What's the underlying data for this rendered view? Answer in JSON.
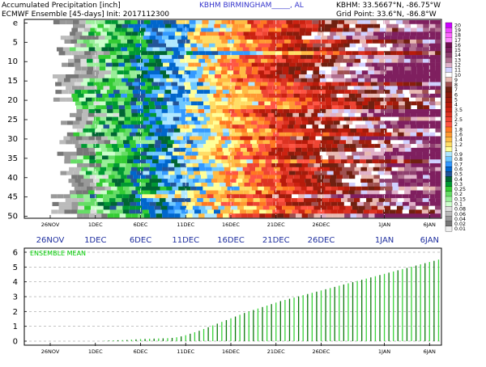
{
  "header": {
    "line1_left": "Accumulated Precipitation [inch]",
    "line1_center": "KBHM  BIRMINGHAM_____, AL",
    "line1_right": "KBHM: 33.5667°N, -86.75°W",
    "line2_left": "ECMWF Ensemble [45-days] Init: 2017112300",
    "line2_right": "Grid Point: 33.6°N, -86.8°W"
  },
  "time_axis": {
    "labels": [
      "26NOV",
      "1DEC",
      "6DEC",
      "11DEC",
      "16DEC",
      "21DEC",
      "26DEC",
      "1JAN",
      "6JAN"
    ]
  },
  "colors": {
    "plume_text": "#ffffff",
    "mean_line": "#00cc00",
    "mean_label": "#00cc00"
  },
  "chart_data": [
    {
      "type": "heatmap",
      "title": "Accumulated Precipitation [inch]",
      "y_ticks": [
        "e",
        "5",
        "10",
        "15",
        "20",
        "25",
        "30",
        "35",
        "40",
        "45",
        "50"
      ],
      "x_ticks": [
        "26NOV",
        "1DEC",
        "6DEC",
        "11DEC",
        "16DEC",
        "21DEC",
        "26DEC",
        "1JAN",
        "6JAN"
      ],
      "members": 51,
      "legend": {
        "thresholds": [
          "20",
          "19",
          "18",
          "17",
          "16",
          "15",
          "14",
          "13",
          "12",
          "11",
          "10",
          "9",
          "8",
          "7",
          "6",
          "5",
          "4",
          "3.5",
          "3",
          "2.5",
          "2",
          "1.8",
          "1.6",
          "1.4",
          "1.2",
          "1",
          "0.9",
          "0.8",
          "0.7",
          "0.6",
          "0.5",
          "0.4",
          "0.3",
          "0.25",
          "0.2",
          "0.15",
          "0.1",
          "0.08",
          "0.06",
          "0.04",
          "0.02",
          "0.01"
        ],
        "colors": [
          "#cc00ff",
          "#ee44ff",
          "#ff66ff",
          "#ff88ff",
          "#6f0f4f",
          "#7f1f5f",
          "#8f3f6f",
          "#b06f8f",
          "#e0b0c8",
          "#d0d0ff",
          "#ffffff",
          "#e9b9b2",
          "#a05050",
          "#702010",
          "#8a1c0c",
          "#a11c0c",
          "#b81b0b",
          "#cc2211",
          "#dd3322",
          "#ee4433",
          "#ff5544",
          "#ff7722",
          "#ff9933",
          "#ffbb44",
          "#ffdd66",
          "#ffff99",
          "#b0e8ff",
          "#6ec8ff",
          "#3399ff",
          "#0066cc",
          "#225599",
          "#006633",
          "#009933",
          "#33cc33",
          "#66dd66",
          "#99ee99",
          "#ccffcc",
          "#dddddd",
          "#bbbbbb",
          "#999999",
          "#777777",
          "#eeeeee"
        ]
      }
    },
    {
      "type": "bar",
      "title": "ENSEMBLE MEAN",
      "x_ticks": [
        "26NOV",
        "1DEC",
        "6DEC",
        "11DEC",
        "16DEC",
        "21DEC",
        "26DEC",
        "1JAN",
        "6JAN"
      ],
      "ylim": [
        0,
        6
      ],
      "y_ticks": [
        0,
        1,
        2,
        3,
        4,
        5,
        6
      ],
      "start_date": "26NOV",
      "samples_per_day": 2,
      "values": [
        0,
        0,
        0,
        0,
        0,
        0,
        0,
        0,
        0,
        0,
        0,
        0,
        0.02,
        0.04,
        0.05,
        0.06,
        0.07,
        0.08,
        0.1,
        0.12,
        0.14,
        0.15,
        0.16,
        0.17,
        0.18,
        0.19,
        0.2,
        0.22,
        0.26,
        0.32,
        0.4,
        0.5,
        0.6,
        0.7,
        0.82,
        0.94,
        1.06,
        1.18,
        1.3,
        1.42,
        1.54,
        1.66,
        1.78,
        1.9,
        2.0,
        2.1,
        2.2,
        2.3,
        2.4,
        2.5,
        2.6,
        2.7,
        2.78,
        2.86,
        2.94,
        3.02,
        3.1,
        3.18,
        3.26,
        3.34,
        3.42,
        3.5,
        3.58,
        3.66,
        3.74,
        3.82,
        3.9,
        3.98,
        4.06,
        4.14,
        4.22,
        4.3,
        4.38,
        4.46,
        4.54,
        4.62,
        4.7,
        4.78,
        4.86,
        4.94,
        5.02,
        5.1,
        5.18,
        5.26,
        5.34,
        5.42,
        5.5,
        5.58,
        5.66,
        5.74,
        5.82,
        5.9
      ]
    }
  ]
}
